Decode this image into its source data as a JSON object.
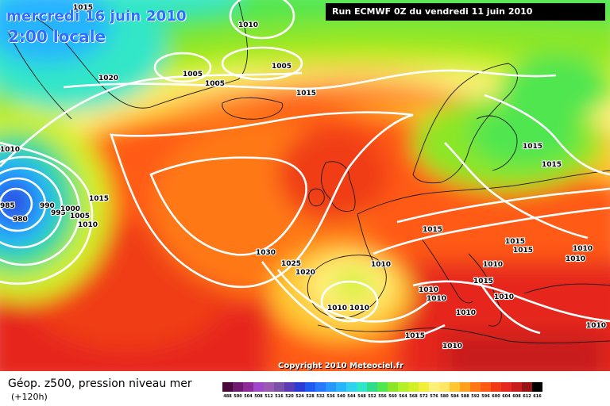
{
  "map": {
    "date_label": "mercredi 16 juin 2010",
    "time_label": "2:00 locale",
    "run_label": "Run ECMWF 0Z du vendredi 11 juin 2010",
    "copyright": "Copyright 2010 Meteociel.fr",
    "isobar_labels": [
      "1015",
      "1010",
      "1005",
      "1005",
      "1005",
      "1020",
      "1015",
      "1010",
      "1015",
      "1015",
      "985",
      "980",
      "990",
      "995",
      "1000",
      "1005",
      "1010",
      "1030",
      "1025",
      "1020",
      "1015",
      "1010",
      "1010",
      "1010",
      "1010",
      "1015",
      "1015",
      "1010",
      "1015",
      "1010",
      "1010",
      "1010",
      "1015",
      "1010",
      "1010",
      "1010",
      "1010",
      "1015"
    ]
  },
  "legend": {
    "title": "Géop. z500, pression niveau mer",
    "subtitle": "(+120h)",
    "scale": [
      {
        "label": "488",
        "color": "#4b0a3c"
      },
      {
        "label": "500",
        "color": "#6e1a6e"
      },
      {
        "label": "504",
        "color": "#8c2a9a"
      },
      {
        "label": "508",
        "color": "#a046c8"
      },
      {
        "label": "512",
        "color": "#9a5ab4"
      },
      {
        "label": "516",
        "color": "#7a50a8"
      },
      {
        "label": "520",
        "color": "#5a3cb4"
      },
      {
        "label": "524",
        "color": "#2c3cd2"
      },
      {
        "label": "528",
        "color": "#1e5af0"
      },
      {
        "label": "532",
        "color": "#2878ff"
      },
      {
        "label": "536",
        "color": "#2896ff"
      },
      {
        "label": "540",
        "color": "#28b4ff"
      },
      {
        "label": "544",
        "color": "#30d2f0"
      },
      {
        "label": "548",
        "color": "#30e6c8"
      },
      {
        "label": "552",
        "color": "#30dc8c"
      },
      {
        "label": "556",
        "color": "#50e650"
      },
      {
        "label": "560",
        "color": "#8ce628"
      },
      {
        "label": "564",
        "color": "#b4f028"
      },
      {
        "label": "568",
        "color": "#d2f028"
      },
      {
        "label": "572",
        "color": "#f0f03c"
      },
      {
        "label": "576",
        "color": "#fff07a"
      },
      {
        "label": "580",
        "color": "#ffe664"
      },
      {
        "label": "584",
        "color": "#ffc832"
      },
      {
        "label": "588",
        "color": "#ffa01e"
      },
      {
        "label": "592",
        "color": "#ff7814"
      },
      {
        "label": "596",
        "color": "#ff5a14"
      },
      {
        "label": "600",
        "color": "#f03c14"
      },
      {
        "label": "604",
        "color": "#e6281e"
      },
      {
        "label": "608",
        "color": "#c81e1e"
      },
      {
        "label": "612",
        "color": "#961414"
      },
      {
        "label": "616",
        "color": "#000000"
      }
    ]
  }
}
